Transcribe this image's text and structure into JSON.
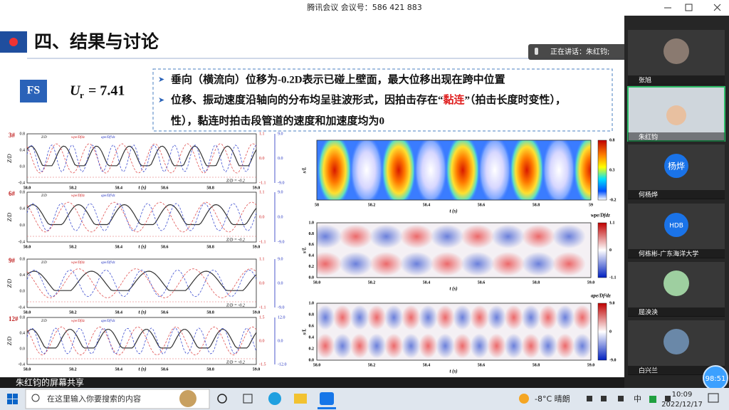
{
  "window": {
    "title": "腾讯会议 会议号：586 421 883"
  },
  "slide": {
    "heading": "四、结果与讨论",
    "badge": "FS",
    "ur_symbol": "U",
    "ur_sub": "r",
    "ur_value": "= 7.41",
    "bullet1": "垂向（横流向）位移为-0.2D表示已碰上壁面，最大位移出现在跨中位置",
    "bullet2_parts": [
      "位移、振动速度沿轴向的分布均呈驻波形式，因拍击存在“",
      "黏连",
      "”（拍击长度时变性），",
      "性），黏连时拍击段管道的速度和加速度均为0"
    ],
    "line_plots": {
      "panels": [
        {
          "label": "3#",
          "y_left": [
            "0.8",
            "0.4",
            "0.0",
            "-0.4"
          ],
          "y_right1": [
            "1.1",
            "0.0",
            "-1.1"
          ],
          "y_right2": [
            "9.0",
            "0.0",
            "-9.0"
          ]
        },
        {
          "label": "6#",
          "y_left": [
            "0.8",
            "0.4",
            "0.0",
            "-0.4"
          ],
          "y_right1": [
            "1.1",
            "0.0",
            "-1.1"
          ],
          "y_right2": [
            "9.0",
            "0.0",
            "-9.0"
          ]
        },
        {
          "label": "9#",
          "y_left": [
            "0.8",
            "0.4",
            "0.0",
            "-0.4"
          ],
          "y_right1": [
            "1.1",
            "0.0",
            "-1.1"
          ],
          "y_right2": [
            "9.0",
            "0.0",
            "-9.0"
          ]
        },
        {
          "label": "12#",
          "y_left": [
            "0.8",
            "0.4",
            "0.0",
            "-0.4"
          ],
          "y_right1": [
            "1.5",
            "0.0",
            "-1.5"
          ],
          "y_right2": [
            "12.0",
            "0.0",
            "-12.0"
          ]
        }
      ],
      "xticks": [
        "58.0",
        "58.2",
        "58.4",
        "58.6",
        "58.8",
        "59.0"
      ],
      "xlabel": "t (s)",
      "ylabel": "Z/D",
      "wall_note": "Z/D = -0.2",
      "legend": [
        "Z/D",
        "wpe/Dfdz",
        "ape/Df²dz"
      ]
    },
    "contours": {
      "xticks_first": [
        "58",
        "58.2",
        "58.4",
        "58.6",
        "58.8",
        "59"
      ],
      "xticks": [
        "58.0",
        "58.2",
        "58.4",
        "58.6",
        "58.8",
        "59.0"
      ],
      "yticks": [
        "0.0",
        "0.2",
        "0.4",
        "0.6",
        "0.8",
        "1.0"
      ],
      "xlabel": "t (s)",
      "ylabel": "s/L",
      "colorbars": [
        {
          "ticks": [
            "0.8",
            "0.3",
            "-0.2"
          ]
        },
        {
          "title": "wpe/Dfdz",
          "ticks": [
            "1.1",
            "0",
            "-1.1"
          ]
        },
        {
          "title": "ape/Df²dz",
          "ticks": [
            "9.0",
            "0",
            "-9.0"
          ]
        }
      ]
    }
  },
  "speaking": "正在讲话：朱红钧;",
  "participants": [
    {
      "name": "张旭"
    },
    {
      "name": "朱红钧"
    },
    {
      "name": "何杨烨",
      "avatar": "杨烨"
    },
    {
      "name": "何栋彬-广东海洋大学",
      "avatar": "HDB"
    },
    {
      "name": "屈泱泱"
    },
    {
      "name": "白兴兰"
    }
  ],
  "share_bar": "朱红钧的屏幕共享",
  "timer": "98:51",
  "taskbar": {
    "search": "在这里输入你要搜索的内容",
    "weather": "-8°C 晴朗",
    "ime": "中",
    "time": "10:09",
    "date": "2022/12/17"
  }
}
